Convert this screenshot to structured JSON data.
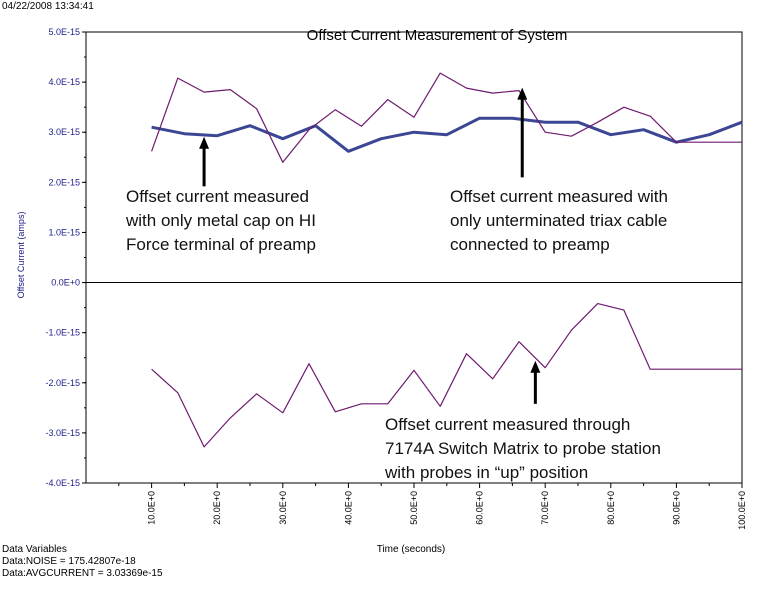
{
  "timestamp": "04/22/2008 13:34:41",
  "footer": {
    "heading": "Data Variables",
    "line1": "Data:NOISE = 175.42807e-18",
    "line2": "Data:AVGCURRENT = 3.03369e-15"
  },
  "chart_data": {
    "type": "line",
    "title": "Offset Current Measurement of System",
    "xlabel": "Time (seconds)",
    "ylabel": "Offset Current (amps)",
    "xlim": [
      0,
      100
    ],
    "ylim": [
      -4e-15,
      5e-15
    ],
    "x_ticks": [
      10,
      20,
      30,
      40,
      50,
      60,
      70,
      80,
      90,
      100
    ],
    "x_tick_labels": [
      "10.0E+0",
      "20.0E+0",
      "30.0E+0",
      "40.0E+0",
      "50.0E+0",
      "60.0E+0",
      "70.0E+0",
      "80.0E+0",
      "90.0E+0",
      "100.0E+0"
    ],
    "y_ticks": [
      5e-15,
      4e-15,
      3e-15,
      2e-15,
      1e-15,
      0,
      -1e-15,
      -2e-15,
      -3e-15,
      -4e-15
    ],
    "y_tick_labels": [
      "5.0E-15",
      "4.0E-15",
      "3.0E-15",
      "2.0E-15",
      "1.0E-15",
      "0.0E+0",
      "-1.0E-15",
      "-2.0E-15",
      "-3.0E-15",
      "-4.0E-15"
    ],
    "grid": false,
    "zero_line": true,
    "series": [
      {
        "color": "#3b4694",
        "width": "thick",
        "x": [
          10,
          15,
          20,
          25,
          30,
          35,
          40,
          45,
          50,
          55,
          60,
          65,
          70,
          75,
          80,
          85,
          90,
          95,
          100
        ],
        "values": [
          3.1e-15,
          2.97e-15,
          2.93e-15,
          3.13e-15,
          2.87e-15,
          3.13e-15,
          2.62e-15,
          2.87e-15,
          3e-15,
          2.95e-15,
          3.28e-15,
          3.28e-15,
          3.2e-15,
          3.2e-15,
          2.95e-15,
          3.05e-15,
          2.8e-15,
          2.95e-15,
          3.2e-15
        ]
      },
      {
        "color": "#6e1a6e",
        "width": "thin",
        "x": [
          10,
          14,
          18,
          22,
          26,
          30,
          34,
          38,
          42,
          46,
          50,
          54,
          58,
          62,
          66,
          70,
          74,
          78,
          82,
          86,
          90,
          94,
          100
        ],
        "values": [
          2.62e-15,
          4.08e-15,
          3.8e-15,
          3.85e-15,
          3.47e-15,
          2.4e-15,
          3.05e-15,
          3.45e-15,
          3.12e-15,
          3.65e-15,
          3.3e-15,
          4.18e-15,
          3.88e-15,
          3.78e-15,
          3.83e-15,
          3e-15,
          2.92e-15,
          3.2e-15,
          3.5e-15,
          3.32e-15,
          2.8e-15,
          2.8e-15,
          2.8e-15
        ]
      },
      {
        "color": "#6e1a6e",
        "width": "thin",
        "x": [
          10,
          14,
          18,
          22,
          26,
          30,
          34,
          38,
          42,
          46,
          50,
          54,
          58,
          62,
          66,
          70,
          74,
          78,
          82,
          86,
          90,
          94,
          100
        ],
        "values": [
          -1.73e-15,
          -2.2e-15,
          -3.28e-15,
          -2.7e-15,
          -2.22e-15,
          -2.6e-15,
          -1.62e-15,
          -2.58e-15,
          -2.42e-15,
          -2.42e-15,
          -1.75e-15,
          -2.47e-15,
          -1.42e-15,
          -1.92e-15,
          -1.18e-15,
          -1.7e-15,
          -9.5e-16,
          -4.2e-16,
          -5.5e-16,
          -1.73e-15,
          -1.73e-15,
          -1.73e-15,
          -1.73e-15
        ]
      }
    ],
    "annotations": [
      {
        "lines": [
          "Offset current measured",
          "with only metal cap on HI",
          "Force terminal of preamp"
        ],
        "arrow_x": 18,
        "arrow_from_y": 1.92e-15,
        "arrow_to_y": 2.87e-15
      },
      {
        "lines": [
          "Offset current measured with",
          "only unterminated triax cable",
          "connected to preamp"
        ],
        "arrow_x": 66.5,
        "arrow_from_y": 2.1e-15,
        "arrow_to_y": 3.85e-15
      },
      {
        "lines": [
          "Offset current measured through",
          "7174A Switch Matrix to probe station",
          "with probes in “up” position"
        ],
        "arrow_x": 68.5,
        "arrow_from_y": -2.42e-15,
        "arrow_to_y": -1.6e-15
      }
    ]
  }
}
